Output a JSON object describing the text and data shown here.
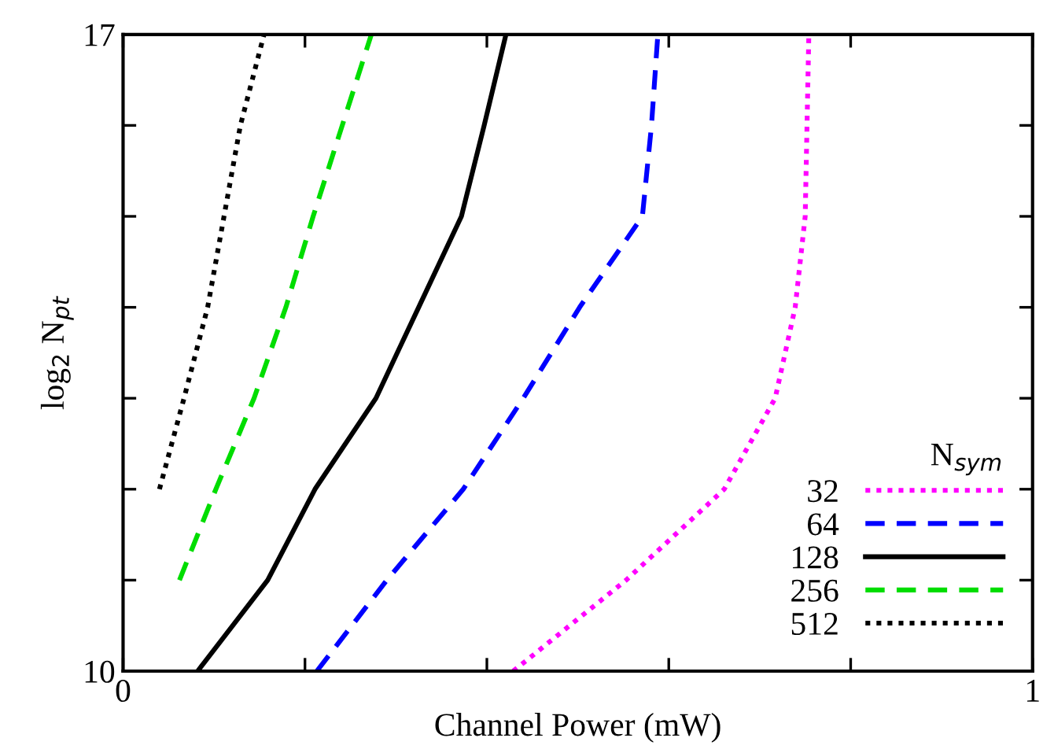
{
  "chart_data": {
    "type": "line",
    "xlabel": "Channel Power (mW)",
    "ylabel": "log$_{2}$ N$_{pt}$",
    "legend_title": "N$_{sym}$",
    "legend": "bottom right",
    "grid": false,
    "marker": "none",
    "xlim": [
      0,
      1
    ],
    "xticks": [
      0,
      {
        "value": 0.2,
        "label": null
      },
      {
        "value": 0.4,
        "label": null
      },
      {
        "value": 0.6,
        "label": null
      },
      {
        "value": 0.8,
        "label": null
      },
      1
    ],
    "ylim": [
      10,
      17
    ],
    "yticks": [
      10,
      {
        "value": 11,
        "label": null
      },
      {
        "value": 12,
        "label": null
      },
      {
        "value": 13,
        "label": null
      },
      {
        "value": 14,
        "label": null
      },
      {
        "value": 15,
        "label": null
      },
      {
        "value": 16,
        "label": null
      },
      17
    ],
    "series": [
      {
        "name": "32",
        "color": "#ff00ff",
        "line_style": "dotted",
        "x": [
          0.429,
          0.553,
          0.661,
          0.717,
          0.739,
          0.75,
          0.752,
          0.754
        ],
        "values": [
          10,
          11,
          12,
          13,
          14,
          15,
          16,
          17
        ]
      },
      {
        "name": "64",
        "color": "#0000ff",
        "line_style": "dashed",
        "x": [
          0.213,
          0.29,
          0.374,
          0.44,
          0.502,
          0.571,
          0.581,
          0.588
        ],
        "values": [
          10,
          11,
          12,
          13,
          14,
          15,
          16,
          17
        ]
      },
      {
        "name": "128",
        "color": "#000000",
        "line_style": "solid",
        "x": [
          0.082,
          0.159,
          0.211,
          0.278,
          0.325,
          0.372,
          0.397,
          0.421
        ],
        "values": [
          10,
          11,
          12,
          13,
          14,
          15,
          16,
          17
        ]
      },
      {
        "name": "256",
        "color": "#00dd00",
        "line_style": "dashed",
        "x": [
          0.062,
          0.102,
          0.144,
          0.179,
          0.209,
          0.241,
          0.273
        ],
        "values": [
          11,
          12,
          13,
          14,
          15,
          16,
          17
        ]
      },
      {
        "name": "512",
        "color": "#000000",
        "line_style": "dotted",
        "x": [
          0.04,
          0.067,
          0.093,
          0.111,
          0.129,
          0.155
        ],
        "values": [
          12,
          13,
          14,
          15,
          16,
          17
        ]
      }
    ]
  }
}
